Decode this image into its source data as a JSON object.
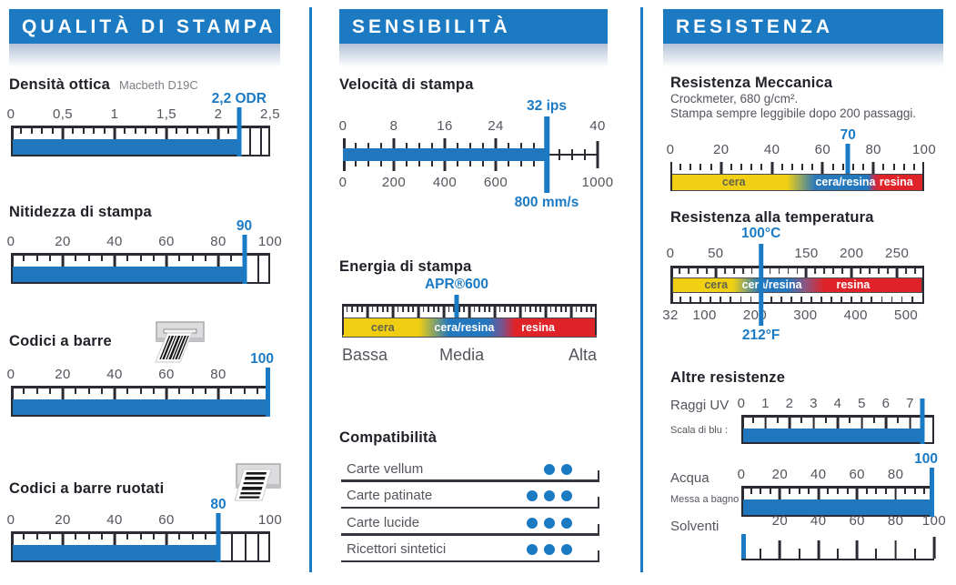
{
  "colors": {
    "accent": "#1B7AC4",
    "bar_blue": "#2177BE",
    "banner_blue": "#1B7AC2",
    "ink": "#2B2B33",
    "heading": "#212129",
    "muted": "#54555D",
    "band_yellow": "#F1D013",
    "band_blue": "#2277BE",
    "band_red": "#DF2328"
  },
  "chart_data": {
    "type": "gauge-datasheet",
    "columns": [
      {
        "header": "QUALITÀ DI STAMPA",
        "gauges": [
          {
            "id": "densita",
            "type": "bar",
            "title": "Densità ottica",
            "subtitle": "Macbeth D19C",
            "min": 0,
            "max": 2.5,
            "major": 0.5,
            "minor": 0.1,
            "labels": [
              [
                0,
                "0"
              ],
              [
                0.5,
                "0,5"
              ],
              [
                1,
                "1"
              ],
              [
                1.5,
                "1,5"
              ],
              [
                2,
                "2"
              ],
              [
                2.5,
                "2,5"
              ]
            ],
            "value": 2.2,
            "value_label": "2,2 ODR"
          },
          {
            "id": "nitidezza",
            "type": "bar",
            "title": "Nitidezza di stampa",
            "min": 0,
            "max": 100,
            "major": 20,
            "minor": 5,
            "labels": [
              [
                0,
                "0"
              ],
              [
                20,
                "20"
              ],
              [
                40,
                "40"
              ],
              [
                60,
                "60"
              ],
              [
                80,
                "80"
              ],
              [
                100,
                "100"
              ]
            ],
            "value": 90,
            "value_label": "90"
          },
          {
            "id": "codici",
            "type": "bar",
            "title": "Codici a barre",
            "icon": "barcode-printer",
            "min": 0,
            "max": 100,
            "major": 20,
            "minor": 5,
            "labels": [
              [
                0,
                "0"
              ],
              [
                20,
                "20"
              ],
              [
                40,
                "40"
              ],
              [
                60,
                "60"
              ],
              [
                80,
                "80"
              ]
            ],
            "value": 100,
            "value_label": "100"
          },
          {
            "id": "ruotati",
            "type": "bar",
            "title": "Codici a barre ruotati",
            "icon": "barcode-printer-rotated",
            "min": 0,
            "max": 100,
            "major": 20,
            "minor": 5,
            "labels": [
              [
                0,
                "0"
              ],
              [
                20,
                "20"
              ],
              [
                40,
                "40"
              ],
              [
                60,
                "60"
              ],
              [
                100,
                "100"
              ]
            ],
            "value": 80,
            "value_label": "80"
          }
        ]
      },
      {
        "header": "SENSIBILITÀ",
        "gauges": [
          {
            "id": "velocita",
            "type": "dual",
            "title": "Velocità di stampa",
            "top": {
              "min": 0,
              "max": 40,
              "major": 8,
              "minor": 2,
              "labels": [
                [
                  0,
                  "0"
                ],
                [
                  8,
                  "8"
                ],
                [
                  16,
                  "16"
                ],
                [
                  24,
                  "24"
                ],
                [
                  40,
                  "40"
                ]
              ]
            },
            "bottom": {
              "min": 0,
              "max": 1000,
              "major": 200,
              "minor": 50,
              "labels": [
                [
                  0,
                  "0"
                ],
                [
                  200,
                  "200"
                ],
                [
                  400,
                  "400"
                ],
                [
                  600,
                  "600"
                ],
                [
                  1000,
                  "1000"
                ]
              ]
            },
            "value": 32,
            "top_value_label": "32 ips",
            "bottom_value_label": "800 mm/s"
          },
          {
            "id": "energia",
            "type": "gradient",
            "title": "Energia di stampa",
            "marker_frac": 0.45,
            "marker_label": "APR®600",
            "has_top_line": true,
            "stops": "#F1D013 0%, #EFCE11 30%, #2277BE 42%, #2277BE 57%, #7A5390 63%, #DF2328 68%, #DF2328 100%",
            "bands": [
              {
                "label": "cera",
                "center": 16,
                "tone": "dark"
              },
              {
                "label": "cera/resina",
                "center": 48,
                "tone": "light"
              },
              {
                "label": "resina",
                "center": 77,
                "tone": "light"
              }
            ],
            "axis": [
              {
                "label": "Bassa",
                "align": "left"
              },
              {
                "label": "Media",
                "align": "center"
              },
              {
                "label": "Alta",
                "align": "right"
              }
            ]
          },
          {
            "id": "compat",
            "type": "table",
            "title": "Compatibilità",
            "rows": [
              {
                "label": "Carte vellum",
                "dots": 2
              },
              {
                "label": "Carte patinate",
                "dots": 3
              },
              {
                "label": "Carte lucide",
                "dots": 3
              },
              {
                "label": "Ricettori sintetici",
                "dots": 3
              }
            ]
          }
        ]
      },
      {
        "header": "RESISTENZA",
        "gauges": [
          {
            "id": "meccanica",
            "type": "gradient",
            "title": "Resistenza Meccanica",
            "notes": [
              "Crockmeter, 680 g/cm².",
              "Stampa sempre leggibile dopo 200 passaggi."
            ],
            "scale": {
              "min": 0,
              "max": 100,
              "major": 20,
              "minor": 4,
              "labels": [
                [
                  0,
                  "0"
                ],
                [
                  20,
                  "20"
                ],
                [
                  40,
                  "40"
                ],
                [
                  60,
                  "60"
                ],
                [
                  80,
                  "80"
                ],
                [
                  100,
                  "100"
                ]
              ]
            },
            "value": 70,
            "value_label": "70",
            "has_top_line": false,
            "stops": "#F1D013 0%, #F1D013 46%, #2C79BA 57%, #2277BE 78%, #C03050 80.5%, #DF2328 83%, #DF2328 100%",
            "bands": [
              {
                "label": "cera",
                "center": 25,
                "tone": "dark"
              },
              {
                "label": "cera/resina",
                "center": 69,
                "tone": "light"
              },
              {
                "label": "resina",
                "center": 89,
                "tone": "light"
              }
            ]
          },
          {
            "id": "temperatura",
            "type": "dual_gradient",
            "title": "Resistenza alla temperatura",
            "top": {
              "min": 0,
              "max": 280,
              "major": 50,
              "minor": 10,
              "labels": [
                [
                  0,
                  "0"
                ],
                [
                  50,
                  "50"
                ],
                [
                  150,
                  "150"
                ],
                [
                  200,
                  "200"
                ],
                [
                  250,
                  "250"
                ]
              ]
            },
            "bottom": {
              "min": 32,
              "max": 536,
              "major": 100,
              "minor": 20,
              "labels": [
                [
                  32,
                  "32"
                ],
                [
                  100,
                  "100"
                ],
                [
                  200,
                  "200"
                ],
                [
                  300,
                  "300"
                ],
                [
                  400,
                  "400"
                ],
                [
                  500,
                  "500"
                ]
              ]
            },
            "value": 100,
            "top_value_label": "100°C",
            "bottom_value_label": "212°F",
            "stops": "#F1D013 0%, #F1D013 24%, #2277BE 35%, #2277BE 46%, #8A5784 53%, #DF2328 61%, #DF2328 100%",
            "bands": [
              {
                "label": "cera",
                "center": 18,
                "tone": "dark"
              },
              {
                "label": "cera/resina",
                "center": 40,
                "tone": "light"
              },
              {
                "label": "resina",
                "center": 72,
                "tone": "light"
              }
            ]
          },
          {
            "id": "altre",
            "type": "heading",
            "title": "Altre resistenze"
          },
          {
            "id": "raggi",
            "type": "bar",
            "side_label": "Raggi UV",
            "side_sublabel": "Scala di blu :",
            "min": 0,
            "max": 8,
            "major": 1,
            "minor": 0.5,
            "labels": [
              [
                0,
                "0"
              ],
              [
                1,
                "1"
              ],
              [
                2,
                "2"
              ],
              [
                3,
                "3"
              ],
              [
                4,
                "4"
              ],
              [
                5,
                "5"
              ],
              [
                6,
                "6"
              ],
              [
                7,
                "7"
              ]
            ],
            "value": 7.5,
            "value_label": ""
          },
          {
            "id": "acqua",
            "type": "bar",
            "side_label": "Acqua",
            "side_sublabel": "Messa a bagno :",
            "min": 0,
            "max": 100,
            "major": 20,
            "minor": 5,
            "labels": [
              [
                0,
                "0"
              ],
              [
                20,
                "20"
              ],
              [
                40,
                "40"
              ],
              [
                60,
                "60"
              ],
              [
                80,
                "80"
              ]
            ],
            "value": 100,
            "value_label": "100"
          },
          {
            "id": "solventi",
            "type": "comb",
            "side_label": "Solventi",
            "min": 0,
            "max": 100,
            "major": 20,
            "minor": 10,
            "labels": [
              [
                20,
                "20"
              ],
              [
                40,
                "40"
              ],
              [
                60,
                "60"
              ],
              [
                80,
                "80"
              ],
              [
                100,
                "100"
              ]
            ],
            "value": 0
          }
        ]
      }
    ]
  }
}
